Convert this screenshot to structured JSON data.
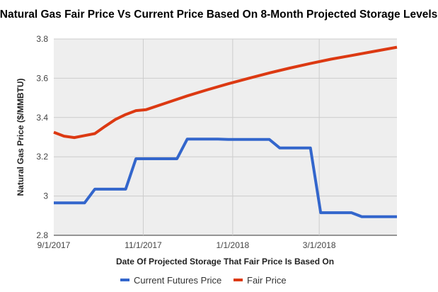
{
  "chart_data": {
    "type": "line",
    "title": "Natural Gas Fair Price Vs Current Price Based On 8-Month Projected  Storage Levels",
    "xlabel": "Date Of Projected Storage That Fair Price Is Based On",
    "ylabel": "Natural Gas Price ($/MMBTU)",
    "ylim": [
      2.8,
      3.8
    ],
    "yticks": [
      2.8,
      3,
      3.2,
      3.4,
      3.6,
      3.8
    ],
    "ytick_labels": [
      "2.8",
      "3",
      "3.2",
      "3.4",
      "3.6",
      "3.8"
    ],
    "xlim": [
      "2017-09-01",
      "2018-04-23"
    ],
    "xticks": [
      "2017-09-01",
      "2017-11-01",
      "2018-01-01",
      "2018-03-01"
    ],
    "xtick_labels": [
      "9/1/2017",
      "11/1/2017",
      "1/1/2018",
      "3/1/2018"
    ],
    "grid": true,
    "legend_position": "bottom",
    "series": [
      {
        "name": "Current Futures Price",
        "color": "#3366cc",
        "points": [
          [
            "2017-09-01",
            2.965
          ],
          [
            "2017-09-22",
            2.965
          ],
          [
            "2017-09-29",
            3.035
          ],
          [
            "2017-10-20",
            3.035
          ],
          [
            "2017-10-27",
            3.19
          ],
          [
            "2017-11-24",
            3.19
          ],
          [
            "2017-12-01",
            3.29
          ],
          [
            "2017-12-22",
            3.29
          ],
          [
            "2017-12-29",
            3.288
          ],
          [
            "2018-01-26",
            3.288
          ],
          [
            "2018-02-02",
            3.245
          ],
          [
            "2018-02-23",
            3.245
          ],
          [
            "2018-03-02",
            2.915
          ],
          [
            "2018-03-23",
            2.915
          ],
          [
            "2018-03-30",
            2.895
          ],
          [
            "2018-04-23",
            2.895
          ]
        ]
      },
      {
        "name": "Fair Price",
        "color": "#dc3912",
        "points": [
          [
            "2017-09-01",
            3.325
          ],
          [
            "2017-09-08",
            3.305
          ],
          [
            "2017-09-15",
            3.298
          ],
          [
            "2017-09-22",
            3.308
          ],
          [
            "2017-09-29",
            3.318
          ],
          [
            "2017-10-06",
            3.355
          ],
          [
            "2017-10-13",
            3.39
          ],
          [
            "2017-10-20",
            3.415
          ],
          [
            "2017-10-27",
            3.435
          ],
          [
            "2017-11-03",
            3.44
          ],
          [
            "2017-11-17",
            3.475
          ],
          [
            "2017-12-01",
            3.51
          ],
          [
            "2017-12-15",
            3.542
          ],
          [
            "2017-12-29",
            3.572
          ],
          [
            "2018-01-12",
            3.6
          ],
          [
            "2018-01-26",
            3.627
          ],
          [
            "2018-02-09",
            3.652
          ],
          [
            "2018-02-23",
            3.675
          ],
          [
            "2018-03-09",
            3.697
          ],
          [
            "2018-03-23",
            3.716
          ],
          [
            "2018-04-06",
            3.735
          ],
          [
            "2018-04-23",
            3.758
          ]
        ]
      }
    ]
  }
}
